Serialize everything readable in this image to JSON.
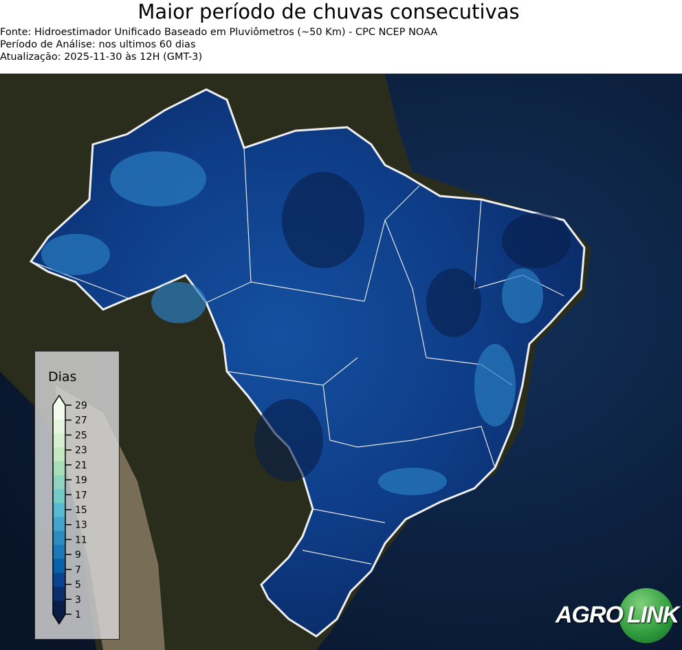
{
  "header": {
    "title": "Maior período de chuvas consecutivas",
    "source": "Fonte: Hidroestimador Unificado Baseado em Pluviômetros (~50 Km) - CPC NCEP NOAA",
    "period": "Período de Análise: nos ultimos 60 dias",
    "updated": "Atualização: 2025-11-30 às 12H (GMT-3)"
  },
  "legend": {
    "title": "Dias",
    "ticks": [
      "29",
      "27",
      "25",
      "23",
      "21",
      "19",
      "17",
      "15",
      "13",
      "11",
      "9",
      "7",
      "5",
      "3",
      "1"
    ],
    "colors": [
      "#081d45",
      "#0b2f6b",
      "#08458e",
      "#0860a8",
      "#1c78b6",
      "#2b8cbe",
      "#42a6cc",
      "#58bad0",
      "#74cbc6",
      "#8fd4c0",
      "#a8ddb5",
      "#c4e8c0",
      "#d6efcf",
      "#e5f5e0",
      "#f3fbef"
    ],
    "top_arrow_color": "#f7fcf0",
    "bottom_arrow_color": "#081d40",
    "extend": "both"
  },
  "map": {
    "region": "Brasil",
    "ocean_color": "#0b1a33",
    "land_color": "#2c2a1e",
    "field_color": "#0d3a80"
  },
  "logo": {
    "text_left": "AGRO",
    "text_right": "LINK",
    "circle_color": "#2e9a3c"
  }
}
